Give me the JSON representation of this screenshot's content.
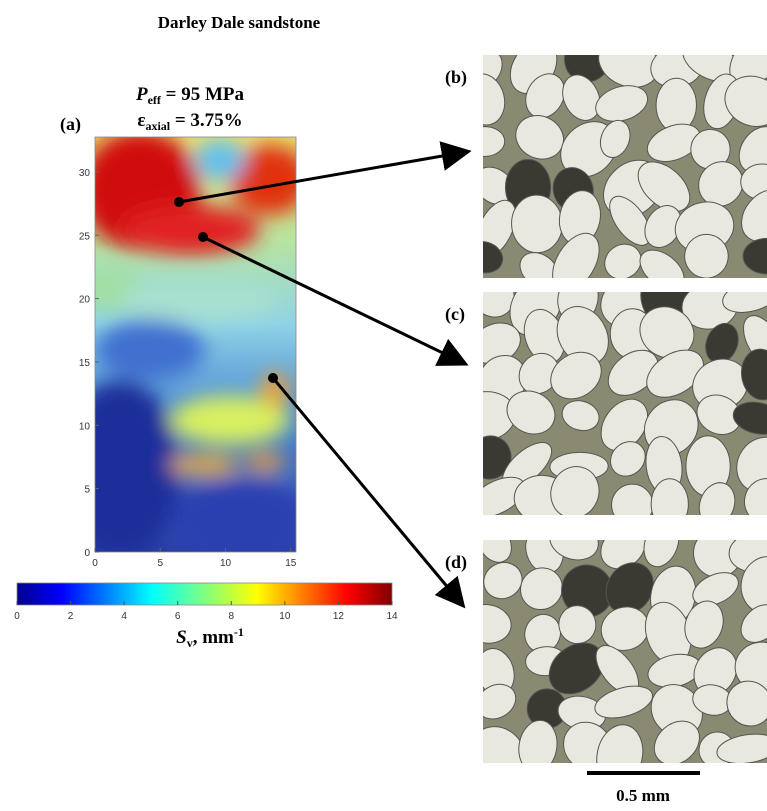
{
  "title": "Darley Dale sandstone",
  "panel_a": {
    "label": "(a)",
    "condition_1": {
      "symbol": "P",
      "subscript": "eff",
      "text": " = 95 MPa"
    },
    "condition_2": {
      "symbol": "ε",
      "subscript": "axial",
      "text": " = 3.75%"
    },
    "x_ticks": [
      0,
      5,
      10,
      15
    ],
    "y_ticks": [
      0,
      5,
      10,
      15,
      20,
      25,
      30
    ],
    "colorbar": {
      "ticks": [
        0,
        2,
        4,
        6,
        8,
        10,
        12,
        14
      ],
      "label": {
        "symbol": "S",
        "subscript": "v",
        "text": ", mm",
        "superscript": "-1"
      }
    }
  },
  "panels": [
    {
      "label": "(b)"
    },
    {
      "label": "(c)"
    },
    {
      "label": "(d)"
    }
  ],
  "scale_bar": "0.5 mm"
}
